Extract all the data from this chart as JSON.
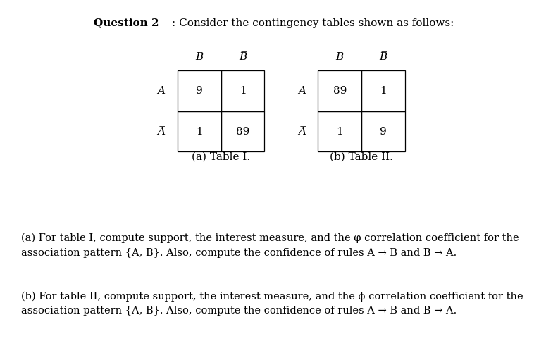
{
  "title_bold": "Question 2",
  "title_rest": ": Consider the contingency tables shown as follows:",
  "table1": {
    "col_headers": [
      "B",
      "B̅"
    ],
    "row_headers": [
      "A",
      "A̅"
    ],
    "values": [
      [
        9,
        1
      ],
      [
        1,
        89
      ]
    ]
  },
  "table2": {
    "col_headers": [
      "B",
      "B̅"
    ],
    "row_headers": [
      "A",
      "A̅"
    ],
    "values": [
      [
        89,
        1
      ],
      [
        1,
        9
      ]
    ]
  },
  "caption1": "(a) Table I.",
  "caption2": "(b) Table II.",
  "text_a": "(a) For table I, compute support, the interest measure, and the φ correlation coefficient for the\nassociation pattern {A, B}. Also, compute the confidence of rules A → B and B → A.",
  "text_b": "(b) For table II, compute support, the interest measure, and the ϕ correlation coefficient for the\nassociation pattern {A, B}. Also, compute the confidence of rules A → B and B → A.",
  "bg_color": "#ffffff",
  "text_color": "#000000",
  "font_size": 11
}
